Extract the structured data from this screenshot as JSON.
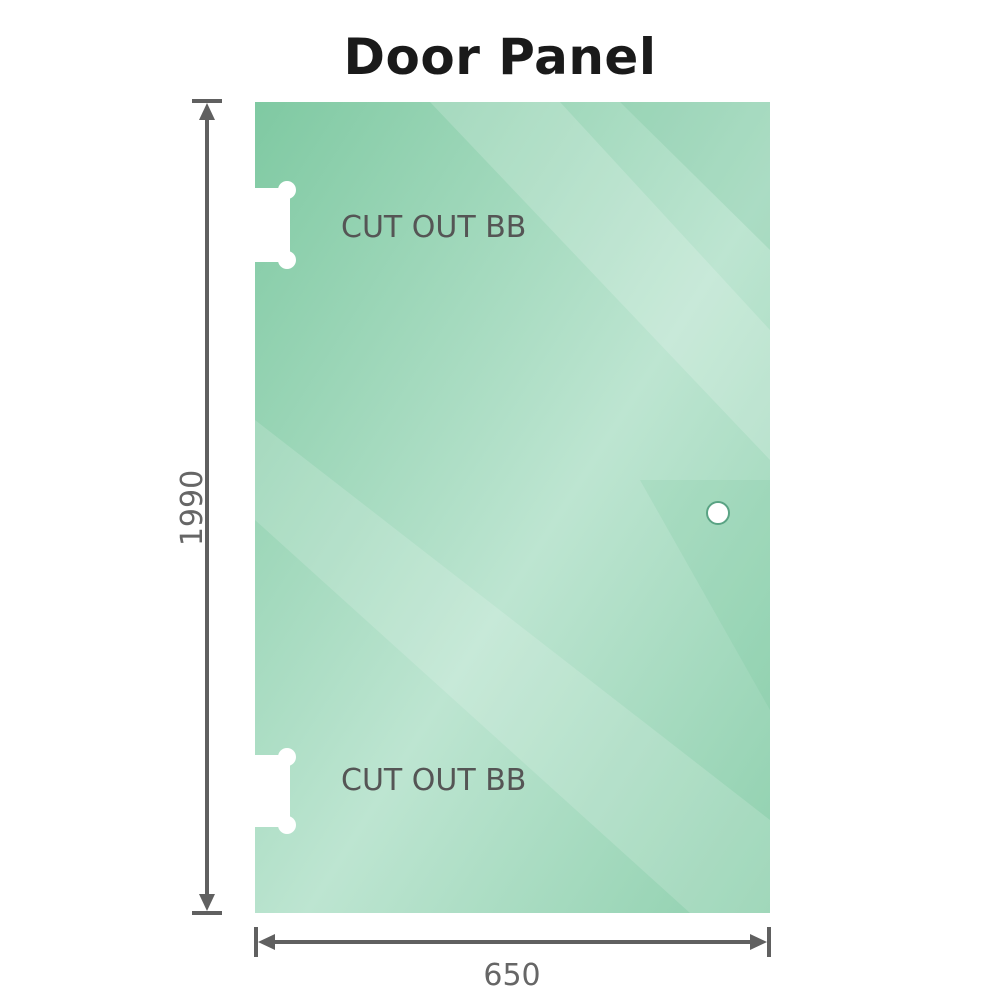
{
  "title": "Door Panel",
  "dimensions": {
    "height": "1990",
    "width": "650"
  },
  "cutouts": [
    {
      "label": "CUT OUT BB"
    },
    {
      "label": "CUT OUT BB"
    }
  ],
  "colors": {
    "glass": "#86cca7",
    "glass_light": "#bfe6d3",
    "dimension_line": "#606060",
    "text": "#555555"
  }
}
